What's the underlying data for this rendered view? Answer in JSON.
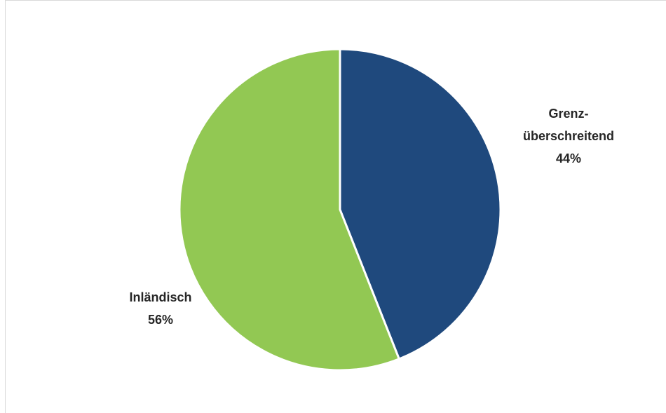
{
  "chart_data": {
    "type": "pie",
    "title": "",
    "categories": [
      "Grenzüberschreitend",
      "Inländisch"
    ],
    "values": [
      44,
      56
    ],
    "colors": [
      "#1f497d",
      "#92c853"
    ],
    "labels": [
      {
        "lines": [
          "Grenz-",
          "überschreitend",
          "44%"
        ]
      },
      {
        "lines": [
          "Inländisch",
          "56%"
        ]
      }
    ],
    "start_angle_deg": 0,
    "direction": "clockwise",
    "legend": "none"
  }
}
